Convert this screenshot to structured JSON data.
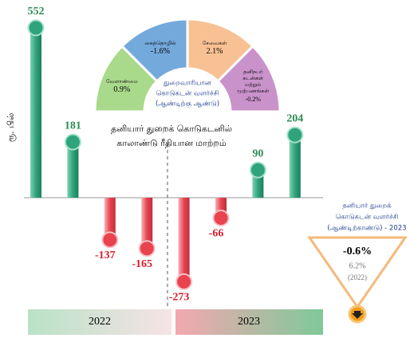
{
  "chart_data": {
    "type": "bar",
    "title": [
      "தனியார் துறைக் கொடுகடனில்",
      "காலாண்டு ரீதியான மாற்றம்"
    ],
    "ylabel": "ரூ. பில்",
    "categories": [
      null,
      null,
      null,
      null,
      null,
      null,
      null,
      null
    ],
    "values": [
      552,
      181,
      -137,
      -165,
      -273,
      -66,
      90,
      204
    ],
    "positive_color": "#2fa37c",
    "negative_color": "#e8434f",
    "ylim": [
      -300,
      600
    ],
    "groups": [
      "2022",
      "2023"
    ]
  },
  "sectors": {
    "title": [
      "துறைவாரியான",
      "கொடுகடன் வளர்ச்சி",
      "(ஆண்டிற்கு ஆண்டு)"
    ],
    "items": [
      {
        "name": [
          "வேளாண்மை"
        ],
        "value": "0.9%",
        "color": "#a9d98b"
      },
      {
        "name": [
          "கைத்தொழில்"
        ],
        "value": "-1.6%",
        "color": "#74a9dc"
      },
      {
        "name": [
          "சேவைகள்"
        ],
        "value": "2.1%",
        "color": "#f8c193"
      },
      {
        "name": [
          "தனிநபர்",
          "கடன்கள்",
          "மற்றும்",
          "முற்பணங்கள்"
        ],
        "value": "-0.2%",
        "color": "#c992cb"
      }
    ]
  },
  "summary": {
    "title": [
      "தனியார் துறைக்",
      "கொடுகடன் வளர்ச்சி",
      "(ஆண்டிற்காண்டு) - 2023"
    ],
    "current": "-0.6%",
    "previous": "6.2%",
    "previous_year": "(2022)"
  }
}
